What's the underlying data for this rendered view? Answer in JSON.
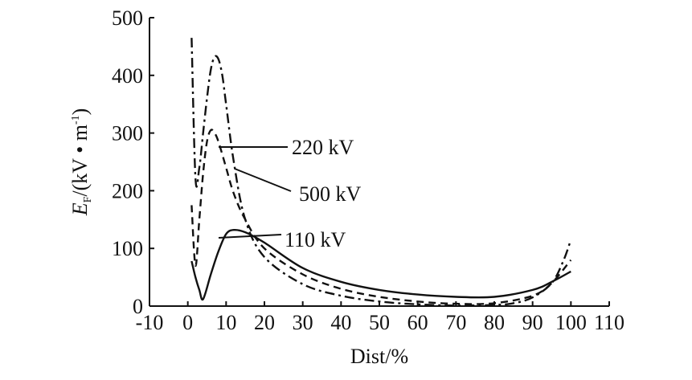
{
  "chart_data": {
    "type": "line",
    "title": "",
    "xlabel": "Dist/%",
    "ylabel": {
      "base": "E",
      "sub": "F",
      "pre_unit": "/(kV • m",
      "sup": "-1",
      "close": ")"
    },
    "xlim": [
      -10,
      110
    ],
    "ylim": [
      0,
      500
    ],
    "xticks": [
      -10,
      0,
      10,
      20,
      30,
      40,
      50,
      60,
      70,
      80,
      90,
      100,
      110
    ],
    "yticks": [
      0,
      100,
      200,
      300,
      400,
      500
    ],
    "grid": false,
    "series": [
      {
        "name": "110 kV",
        "style": "solid",
        "x": [
          1,
          2,
          3,
          4,
          6,
          8,
          10,
          12,
          15,
          20,
          30,
          40,
          50,
          60,
          70,
          80,
          90,
          95,
          100
        ],
        "y": [
          78,
          50,
          28,
          12,
          55,
          95,
          125,
          132,
          128,
          110,
          66,
          42,
          28,
          20,
          16,
          16,
          28,
          42,
          60
        ]
      },
      {
        "name": "220 kV",
        "style": "dashdot",
        "x": [
          1,
          2,
          3,
          4,
          5,
          6,
          7,
          8,
          9,
          10,
          12,
          15,
          20,
          30,
          40,
          50,
          60,
          70,
          80,
          85,
          90,
          95,
          98,
          100
        ],
        "y": [
          465,
          222,
          240,
          300,
          360,
          410,
          432,
          428,
          400,
          350,
          250,
          150,
          85,
          38,
          18,
          8,
          3,
          1,
          2,
          5,
          15,
          40,
          78,
          115
        ]
      },
      {
        "name": "500 kV",
        "style": "dashed",
        "x": [
          1,
          2,
          3,
          4,
          5,
          6,
          7,
          8,
          10,
          12,
          15,
          20,
          30,
          40,
          50,
          60,
          70,
          80,
          90,
          95,
          100
        ],
        "y": [
          175,
          70,
          150,
          230,
          285,
          305,
          300,
          285,
          240,
          195,
          150,
          100,
          55,
          30,
          16,
          8,
          4,
          5,
          18,
          40,
          80
        ]
      }
    ],
    "annotations": [
      {
        "text": "220 kV",
        "series": "220 kV"
      },
      {
        "text": "500 kV",
        "series": "500 kV"
      },
      {
        "text": "110 kV",
        "series": "110 kV"
      }
    ]
  }
}
